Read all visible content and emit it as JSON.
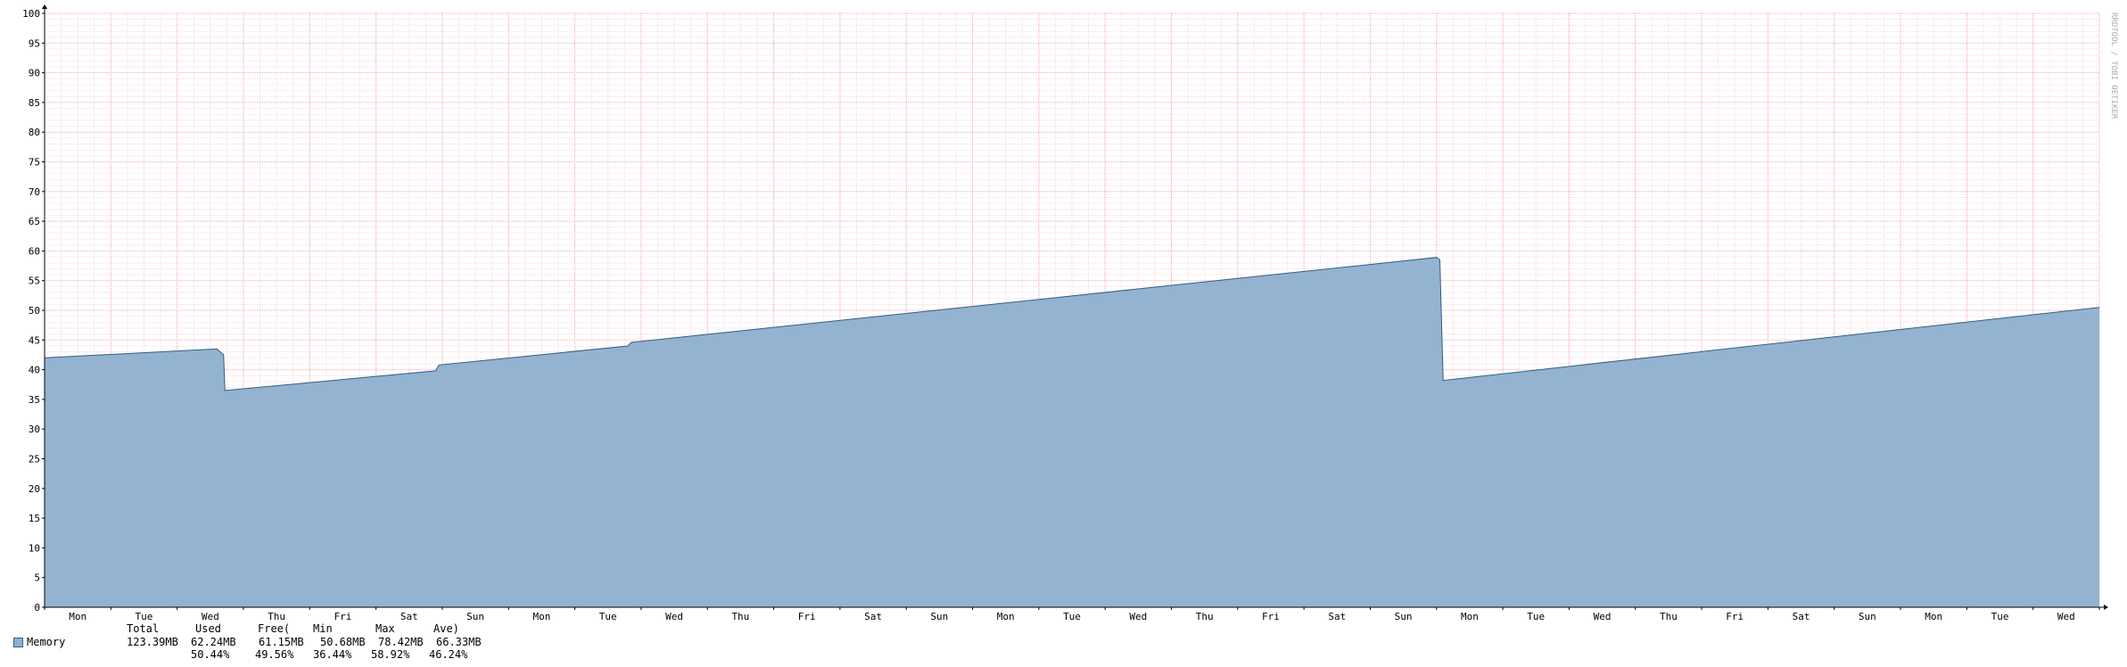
{
  "chart_data": {
    "type": "area",
    "title": "",
    "xlabel": "",
    "ylabel": "",
    "ylim": [
      0,
      100
    ],
    "y_ticks": [
      0,
      5,
      10,
      15,
      20,
      25,
      30,
      35,
      40,
      45,
      50,
      55,
      60,
      65,
      70,
      75,
      80,
      85,
      90,
      95,
      100
    ],
    "y_tick_labels": [
      "0",
      "5",
      "10",
      "15",
      "20",
      "25",
      "30",
      "35",
      "40",
      "45",
      "50",
      "55",
      "60",
      "65",
      "70",
      "75",
      "80",
      "85",
      "90",
      "95",
      "100"
    ],
    "x_ticks": [
      "Mon",
      "Tue",
      "Wed",
      "Thu",
      "Fri",
      "Sat",
      "Sun",
      "Mon",
      "Tue",
      "Wed",
      "Thu",
      "Fri",
      "Sat",
      "Sun",
      "Mon",
      "Tue",
      "Wed",
      "Thu",
      "Fri",
      "Sat",
      "Sun",
      "Mon",
      "Tue",
      "Wed",
      "Thu",
      "Fri",
      "Sat",
      "Sun",
      "Mon",
      "Tue",
      "Wed"
    ],
    "xlim_days": [
      0,
      31
    ],
    "grid": true,
    "side_label": "RRDTOOL / TOBI OETIKER",
    "colors": {
      "fill": "#93b3d0",
      "line": "#2f5f8a",
      "grid_minor": "#ffd6dc",
      "grid_major": "#f4a6b0"
    },
    "series": [
      {
        "name": "Memory",
        "x": [
          0,
          2.6,
          2.7,
          2.72,
          5.9,
          5.95,
          8.8,
          8.85,
          21.0,
          21.05,
          21.1,
          31.0
        ],
        "values": [
          42.0,
          43.5,
          42.5,
          36.5,
          39.8,
          40.8,
          44.0,
          44.6,
          58.9,
          58.5,
          38.2,
          50.5
        ]
      }
    ]
  },
  "legend": {
    "series_name": "Memory",
    "header": [
      "Total",
      "Used",
      "Free(",
      "Min",
      "Max",
      "Ave)"
    ],
    "row_values": [
      "123.39MB",
      "62.24MB",
      "61.15MB",
      "50.68MB",
      "78.42MB",
      "66.33MB"
    ],
    "row_percents": [
      "50.44%",
      "49.56%",
      "36.44%",
      "58.92%",
      "46.24%"
    ]
  }
}
